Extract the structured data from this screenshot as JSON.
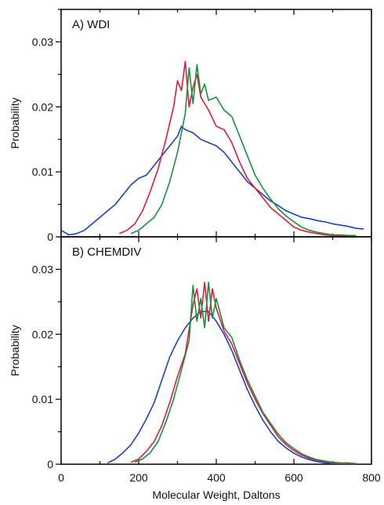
{
  "chart_data": [
    {
      "type": "line",
      "panel_label": "A) WDI",
      "ylabel": "Probability",
      "xlabel": "",
      "xlim": [
        0,
        800
      ],
      "ylim": [
        0,
        0.035
      ],
      "yticks": [
        0,
        0.01,
        0.02,
        0.03
      ],
      "ytick_labels": [
        "0",
        "0.01",
        "0.02",
        "0.03"
      ],
      "xticks": [
        0,
        200,
        400,
        600,
        800
      ],
      "xtick_labels": [],
      "grid": false,
      "legend": "none",
      "series": [
        {
          "color": "#1f3fbf",
          "x": [
            0,
            20,
            40,
            60,
            80,
            100,
            120,
            140,
            160,
            180,
            200,
            220,
            240,
            260,
            280,
            300,
            310,
            320,
            340,
            360,
            380,
            400,
            420,
            440,
            460,
            480,
            500,
            520,
            540,
            560,
            580,
            600,
            620,
            640,
            660,
            680,
            700,
            720,
            740,
            760,
            780
          ],
          "y": [
            0.001,
            0.0003,
            0.0005,
            0.001,
            0.002,
            0.003,
            0.004,
            0.005,
            0.0065,
            0.008,
            0.009,
            0.0095,
            0.011,
            0.0125,
            0.014,
            0.0155,
            0.017,
            0.0165,
            0.016,
            0.015,
            0.0145,
            0.014,
            0.013,
            0.0115,
            0.01,
            0.0085,
            0.0075,
            0.0065,
            0.0055,
            0.0048,
            0.004,
            0.0035,
            0.003,
            0.0028,
            0.0025,
            0.0023,
            0.002,
            0.0018,
            0.0016,
            0.0013,
            0.0012
          ]
        },
        {
          "color": "#e8173c",
          "x": [
            150,
            170,
            190,
            210,
            230,
            250,
            270,
            290,
            300,
            310,
            320,
            330,
            340,
            350,
            360,
            380,
            400,
            420,
            440,
            460,
            480,
            500,
            520,
            540,
            560,
            580,
            600,
            620,
            640,
            660,
            680,
            700,
            720,
            740,
            760
          ],
          "y": [
            0.0005,
            0.001,
            0.002,
            0.004,
            0.007,
            0.0105,
            0.015,
            0.02,
            0.024,
            0.0225,
            0.027,
            0.02,
            0.023,
            0.025,
            0.0215,
            0.0195,
            0.017,
            0.0165,
            0.0145,
            0.0115,
            0.009,
            0.0075,
            0.006,
            0.0045,
            0.0035,
            0.0025,
            0.0015,
            0.001,
            0.0007,
            0.0005,
            0.0003,
            0.0002,
            0.0002,
            0.0001,
            0.0001
          ]
        },
        {
          "color": "#16923a",
          "x": [
            180,
            200,
            220,
            240,
            260,
            280,
            300,
            310,
            320,
            330,
            340,
            350,
            360,
            370,
            380,
            400,
            420,
            440,
            460,
            480,
            500,
            520,
            540,
            560,
            580,
            600,
            620,
            640,
            660,
            680,
            700,
            720,
            740,
            760
          ],
          "y": [
            0.0005,
            0.001,
            0.002,
            0.003,
            0.005,
            0.0085,
            0.013,
            0.016,
            0.019,
            0.026,
            0.0205,
            0.0265,
            0.022,
            0.0235,
            0.021,
            0.0215,
            0.0195,
            0.0185,
            0.0155,
            0.0125,
            0.0095,
            0.0075,
            0.0058,
            0.0043,
            0.0032,
            0.0023,
            0.0015,
            0.001,
            0.0007,
            0.0005,
            0.0003,
            0.0003,
            0.0002,
            0.0002
          ]
        }
      ]
    },
    {
      "type": "line",
      "panel_label": "B) CHEMDIV",
      "ylabel": "Probability",
      "xlabel": "Molecular Weight, Daltons",
      "xlim": [
        0,
        800
      ],
      "ylim": [
        0,
        0.035
      ],
      "yticks": [
        0,
        0.01,
        0.02,
        0.03
      ],
      "ytick_labels": [
        "0",
        "0.01",
        "0.02",
        "0.03"
      ],
      "xticks": [
        0,
        200,
        400,
        600,
        800
      ],
      "xtick_labels": [
        "0",
        "200",
        "400",
        "600",
        "800"
      ],
      "grid": false,
      "legend": "none",
      "series": [
        {
          "color": "#1f3fbf",
          "x": [
            120,
            140,
            160,
            180,
            200,
            220,
            240,
            260,
            280,
            300,
            320,
            340,
            360,
            380,
            400,
            420,
            440,
            460,
            480,
            500,
            520,
            540,
            560,
            580,
            600,
            620,
            640,
            660,
            680,
            700,
            720
          ],
          "y": [
            0.0002,
            0.0008,
            0.0018,
            0.003,
            0.0048,
            0.007,
            0.0095,
            0.013,
            0.0165,
            0.019,
            0.021,
            0.0225,
            0.0235,
            0.0235,
            0.022,
            0.02,
            0.0175,
            0.0145,
            0.0115,
            0.009,
            0.0068,
            0.005,
            0.0035,
            0.0025,
            0.0017,
            0.0011,
            0.0007,
            0.0004,
            0.0002,
            0.0001,
            0.0001
          ]
        },
        {
          "color": "#e8173c",
          "x": [
            180,
            200,
            220,
            240,
            260,
            280,
            300,
            320,
            340,
            350,
            360,
            370,
            380,
            390,
            400,
            420,
            440,
            460,
            480,
            500,
            520,
            540,
            560,
            580,
            600,
            620,
            640,
            660,
            680,
            700,
            720,
            740,
            760
          ],
          "y": [
            0.0003,
            0.0008,
            0.002,
            0.0035,
            0.006,
            0.0095,
            0.0135,
            0.017,
            0.0245,
            0.027,
            0.0225,
            0.028,
            0.022,
            0.027,
            0.024,
            0.0205,
            0.0185,
            0.0155,
            0.0125,
            0.01,
            0.0078,
            0.006,
            0.0042,
            0.003,
            0.0021,
            0.0014,
            0.0009,
            0.0006,
            0.0004,
            0.0002,
            0.0001,
            0.0001,
            0.0001
          ]
        },
        {
          "color": "#16923a",
          "x": [
            190,
            210,
            230,
            250,
            270,
            290,
            310,
            330,
            340,
            350,
            360,
            370,
            380,
            390,
            400,
            420,
            440,
            460,
            480,
            500,
            520,
            540,
            560,
            580,
            600,
            620,
            640,
            660,
            680,
            700,
            720,
            740,
            760
          ],
          "y": [
            0.0003,
            0.0008,
            0.0018,
            0.0035,
            0.0065,
            0.01,
            0.0145,
            0.019,
            0.0275,
            0.022,
            0.0255,
            0.021,
            0.028,
            0.0225,
            0.0255,
            0.021,
            0.0195,
            0.016,
            0.013,
            0.0105,
            0.008,
            0.0063,
            0.0046,
            0.0033,
            0.0024,
            0.0016,
            0.0011,
            0.0007,
            0.0005,
            0.0003,
            0.0002,
            0.0002,
            0.0001
          ]
        }
      ]
    }
  ]
}
